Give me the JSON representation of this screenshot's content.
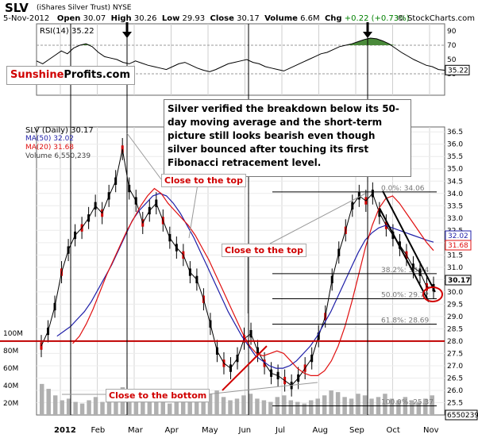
{
  "header": {
    "ticker": "SLV",
    "trust": "(iShares Silver Trust)",
    "exchange": "NYSE",
    "date": "5-Nov-2012",
    "open_label": "Open",
    "open": "30.07",
    "high_label": "High",
    "high": "30.26",
    "low_label": "Low",
    "low": "29.93",
    "close_label": "Close",
    "close": "30.17",
    "volume_label": "Volume",
    "volume": "6.6M",
    "chg_label": "Chg",
    "chg": "+0.22 (+0.73%)",
    "credit": "© StockCharts.com"
  },
  "logo": {
    "part1": "Sunshine",
    "part2": "Profits.com"
  },
  "comment": "Silver verified the breakdown below its 50-day moving average and the short-term picture still looks bearish even though silver bounced after touching its first Fibonacci retracement level.",
  "annotations": {
    "top1": "Close to the top",
    "top2": "Close to the top",
    "bottom": "Close to the bottom"
  },
  "legend": {
    "slv": "SLV (Daily) 30.17",
    "ma50": "MA(50) 32.02",
    "ma20": "MA(20) 31.68",
    "volume": "Volume 6,550,239"
  },
  "colors": {
    "price": "#000000",
    "ma50": "#1f1fa8",
    "ma20": "#e01010",
    "volume": "#b0b0b0",
    "annotation": "#d00000",
    "rsi_fill": "#4a8a3a"
  },
  "chart_data": {
    "type": "line",
    "xlabel": "",
    "ylabel": "",
    "x_ticks": [
      "2012",
      "Feb",
      "Mar",
      "Apr",
      "May",
      "Jun",
      "Jul",
      "Aug",
      "Sep",
      "Oct",
      "Nov"
    ],
    "ylim": [
      25.0,
      36.7
    ],
    "y_ticks": [
      "36.5",
      "36.0",
      "35.5",
      "35.0",
      "34.5",
      "34.0",
      "33.5",
      "33.0",
      "32.5",
      "32.0",
      "31.5",
      "31.0",
      "30.5",
      "30.0",
      "29.5",
      "29.0",
      "28.5",
      "28.0",
      "27.5",
      "27.0",
      "26.5",
      "26.0",
      "25.5"
    ],
    "rsi": {
      "label": "RSI(14) 35.22",
      "ylim": [
        0,
        100
      ],
      "y_ticks": [
        "90",
        "70",
        "50",
        "30"
      ],
      "levels": [
        30,
        70
      ],
      "current": "35.22",
      "values": [
        48,
        44,
        50,
        56,
        62,
        58,
        66,
        70,
        72,
        68,
        60,
        54,
        52,
        50,
        46,
        44,
        48,
        45,
        42,
        40,
        38,
        36,
        40,
        44,
        46,
        42,
        38,
        35,
        33,
        36,
        40,
        44,
        46,
        48,
        50,
        46,
        44,
        40,
        38,
        36,
        34,
        38,
        42,
        46,
        50,
        54,
        58,
        60,
        64,
        68,
        70,
        72,
        75,
        78,
        80,
        79,
        76,
        72,
        66,
        60,
        55,
        50,
        46,
        42,
        40,
        36,
        35
      ]
    },
    "series": [
      {
        "name": "SLV (Daily)",
        "values": [
          27.8,
          28.4,
          29.4,
          30.8,
          31.7,
          32.3,
          32.6,
          33.0,
          33.5,
          33.2,
          33.9,
          34.5,
          35.8,
          34.2,
          33.7,
          32.8,
          33.3,
          33.6,
          32.9,
          32.2,
          31.8,
          31.5,
          30.8,
          30.5,
          29.7,
          28.7,
          27.6,
          27.1,
          26.9,
          27.3,
          28.1,
          28.3,
          27.6,
          27.1,
          26.7,
          26.6,
          26.4,
          26.2,
          26.5,
          26.9,
          27.3,
          28.2,
          29.0,
          30.5,
          31.6,
          32.5,
          33.5,
          33.9,
          33.7,
          34.0,
          33.2,
          32.7,
          32.3,
          31.9,
          31.5,
          31.0,
          30.8,
          30.2,
          30.17
        ]
      },
      {
        "name": "MA(50)",
        "values": [
          28.2,
          28.4,
          28.6,
          28.9,
          29.2,
          29.6,
          30.1,
          30.6,
          31.1,
          31.7,
          32.3,
          32.9,
          33.3,
          33.6,
          33.9,
          34.0,
          33.9,
          33.6,
          33.2,
          32.7,
          32.2,
          31.6,
          31.0,
          30.4,
          29.8,
          29.2,
          28.7,
          28.2,
          27.8,
          27.4,
          27.2,
          27.0,
          26.9,
          26.9,
          27.0,
          27.2,
          27.5,
          27.8,
          28.2,
          28.7,
          29.2,
          29.8,
          30.4,
          31.0,
          31.6,
          32.1,
          32.4,
          32.6,
          32.7,
          32.6,
          32.5,
          32.4,
          32.3,
          32.2,
          32.1,
          32.02
        ]
      },
      {
        "name": "MA(20)",
        "values": [
          27.9,
          28.2,
          28.7,
          29.3,
          30.0,
          30.7,
          31.3,
          31.9,
          32.5,
          33.0,
          33.5,
          33.9,
          34.2,
          34.0,
          33.6,
          33.3,
          33.0,
          32.7,
          32.3,
          31.8,
          31.3,
          30.7,
          30.1,
          29.5,
          28.9,
          28.3,
          27.8,
          27.5,
          27.4,
          27.5,
          27.6,
          27.5,
          27.2,
          26.9,
          26.7,
          26.6,
          26.6,
          26.8,
          27.2,
          27.8,
          28.6,
          29.6,
          30.7,
          31.8,
          32.7,
          33.4,
          33.8,
          33.9,
          33.6,
          33.2,
          32.8,
          32.4,
          32.0,
          31.68
        ]
      }
    ],
    "volume": {
      "label": "Volume 6,550,239",
      "y_ticks": [
        "100M",
        "80M",
        "60M",
        "40M",
        "20M"
      ],
      "current": "6550239",
      "values": [
        38,
        32,
        24,
        18,
        20,
        16,
        14,
        18,
        22,
        16,
        20,
        26,
        34,
        24,
        18,
        16,
        20,
        22,
        18,
        14,
        16,
        18,
        22,
        20,
        24,
        26,
        30,
        22,
        18,
        20,
        24,
        26,
        20,
        18,
        16,
        22,
        24,
        18,
        16,
        14,
        18,
        20,
        24,
        30,
        28,
        22,
        20,
        26,
        24,
        20,
        22,
        26,
        20,
        18,
        22,
        18,
        16,
        20,
        24
      ]
    },
    "fibonacci": [
      {
        "label": "0.0%: 34.06",
        "value": 34.06
      },
      {
        "label": "38.2%: 30.74",
        "value": 30.74
      },
      {
        "label": "50.0%: 29.72",
        "value": 29.72
      },
      {
        "label": "61.8%: 28.69",
        "value": 28.69
      },
      {
        "label": "100.0%: 25.37",
        "value": 25.37
      }
    ],
    "price_tags": [
      {
        "label": "32.02",
        "color": "#1f1fa8"
      },
      {
        "label": "31.68",
        "color": "#e01010"
      },
      {
        "label": "30.17",
        "color": "#000000"
      }
    ]
  }
}
